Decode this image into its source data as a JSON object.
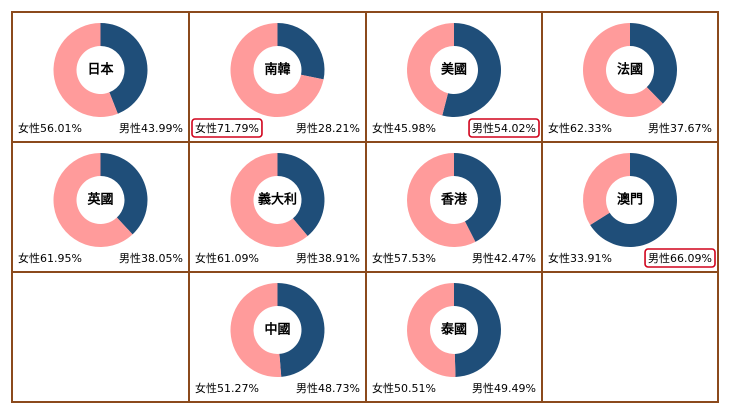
{
  "chart_data": [
    {
      "type": "pie",
      "title": "日本",
      "values": [
        56.01,
        43.99
      ],
      "value_labels": [
        "女性56.01%",
        "男性43.99%"
      ],
      "colors": [
        "#ff9b9b",
        "#1f4e79"
      ]
    },
    {
      "type": "pie",
      "title": "南韓",
      "values": [
        71.79,
        28.21
      ],
      "value_labels": [
        "女性71.79%",
        "男性28.21%"
      ],
      "colors": [
        "#ff9b9b",
        "#1f4e79"
      ],
      "highlight": 0
    },
    {
      "type": "pie",
      "title": "美國",
      "values": [
        45.98,
        54.02
      ],
      "value_labels": [
        "女性45.98%",
        "男性54.02%"
      ],
      "colors": [
        "#ff9b9b",
        "#1f4e79"
      ],
      "highlight": 1
    },
    {
      "type": "pie",
      "title": "法國",
      "values": [
        62.33,
        37.67
      ],
      "value_labels": [
        "女性62.33%",
        "男性37.67%"
      ],
      "colors": [
        "#ff9b9b",
        "#1f4e79"
      ]
    },
    {
      "type": "pie",
      "title": "英國",
      "values": [
        61.95,
        38.05
      ],
      "value_labels": [
        "女性61.95%",
        "男性38.05%"
      ],
      "colors": [
        "#ff9b9b",
        "#1f4e79"
      ]
    },
    {
      "type": "pie",
      "title": "義大利",
      "values": [
        61.09,
        38.91
      ],
      "value_labels": [
        "女性61.09%",
        "男性38.91%"
      ],
      "colors": [
        "#ff9b9b",
        "#1f4e79"
      ]
    },
    {
      "type": "pie",
      "title": "香港",
      "values": [
        57.53,
        42.47
      ],
      "value_labels": [
        "女性57.53%",
        "男性42.47%"
      ],
      "colors": [
        "#ff9b9b",
        "#1f4e79"
      ]
    },
    {
      "type": "pie",
      "title": "澳門",
      "values": [
        33.91,
        66.09
      ],
      "value_labels": [
        "女性33.91%",
        "男性66.09%"
      ],
      "colors": [
        "#ff9b9b",
        "#1f4e79"
      ],
      "highlight": 1
    },
    {
      "type": "pie",
      "title": "中國",
      "values": [
        51.27,
        48.73
      ],
      "value_labels": [
        "女性51.27%",
        "男性48.73%"
      ],
      "colors": [
        "#ff9b9b",
        "#1f4e79"
      ]
    },
    {
      "type": "pie",
      "title": "泰國",
      "values": [
        50.51,
        49.49
      ],
      "value_labels": [
        "女性50.51%",
        "男性49.49%"
      ],
      "colors": [
        "#ff9b9b",
        "#1f4e79"
      ]
    }
  ]
}
